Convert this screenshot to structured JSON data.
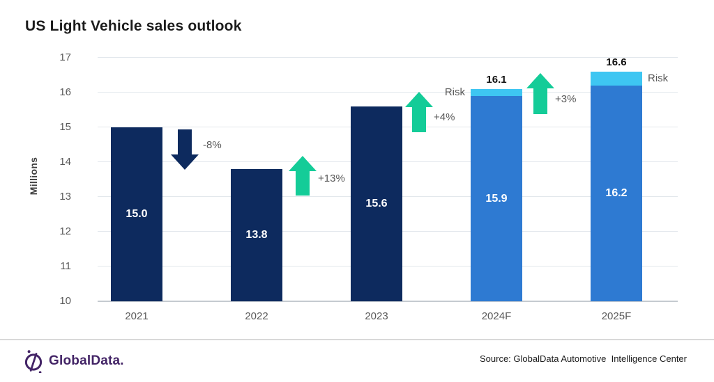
{
  "title": "US Light Vehicle sales outlook",
  "chart_data": {
    "type": "bar",
    "title": "US Light Vehicle sales outlook",
    "xlabel": "",
    "ylabel": "Millions",
    "ylim": [
      10,
      17
    ],
    "yticks": [
      10,
      11,
      12,
      13,
      14,
      15,
      16,
      17
    ],
    "grid": true,
    "legend": "none",
    "categories": [
      "2021",
      "2022",
      "2023",
      "2024F",
      "2025F"
    ],
    "bars": [
      {
        "category": "2021",
        "value": 15.0,
        "value_label": "15.0",
        "color_key": "navy"
      },
      {
        "category": "2022",
        "value": 13.8,
        "value_label": "13.8",
        "color_key": "navy"
      },
      {
        "category": "2023",
        "value": 15.6,
        "value_label": "15.6",
        "color_key": "navy"
      },
      {
        "category": "2024F",
        "value": 15.9,
        "value_label": "15.9",
        "color_key": "blue",
        "risk": {
          "total_value": 16.1,
          "total_label": "16.1",
          "label": "Risk",
          "label_side": "left",
          "color_key": "cyan"
        }
      },
      {
        "category": "2025F",
        "value": 16.2,
        "value_label": "16.2",
        "color_key": "blue",
        "risk": {
          "total_value": 16.6,
          "total_label": "16.6",
          "label": "Risk",
          "label_side": "right",
          "color_key": "cyan"
        }
      }
    ],
    "changes": [
      {
        "from": "2021",
        "to": "2022",
        "label": "-8%",
        "direction": "down",
        "color_key": "navy"
      },
      {
        "from": "2022",
        "to": "2023",
        "label": "+13%",
        "direction": "up",
        "color_key": "green"
      },
      {
        "from": "2023",
        "to": "2024F",
        "label": "+4%",
        "direction": "up",
        "color_key": "green"
      },
      {
        "from": "2024F",
        "to": "2025F",
        "label": "+3%",
        "direction": "up",
        "color_key": "green"
      }
    ],
    "colors": {
      "navy": "#0d2a5e",
      "blue": "#2e7ad2",
      "cyan": "#3ec6f2",
      "green": "#14cc98"
    }
  },
  "footer": {
    "logo_text": "GlobalData.",
    "logo_color": "#432466",
    "source": "Source: GlobalData Automotive  Intelligence Center"
  }
}
